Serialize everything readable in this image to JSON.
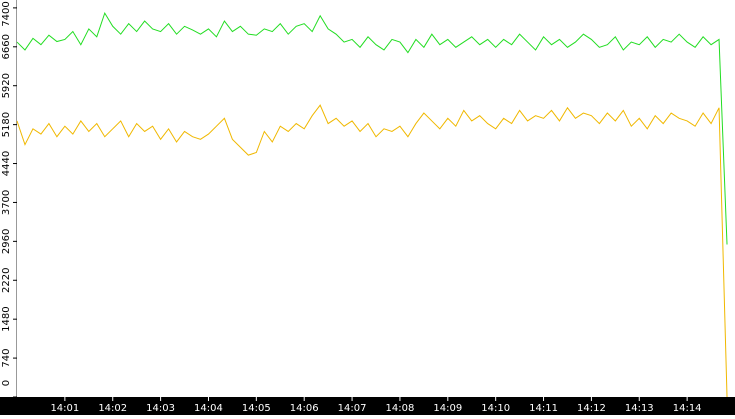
{
  "chart_data": {
    "type": "line",
    "x": [
      "14:00:00",
      "14:00:10",
      "14:00:20",
      "14:00:30",
      "14:00:40",
      "14:00:50",
      "14:01:00",
      "14:01:10",
      "14:01:20",
      "14:01:30",
      "14:01:40",
      "14:01:50",
      "14:02:00",
      "14:02:10",
      "14:02:20",
      "14:02:30",
      "14:02:40",
      "14:02:50",
      "14:03:00",
      "14:03:10",
      "14:03:20",
      "14:03:30",
      "14:03:40",
      "14:03:50",
      "14:04:00",
      "14:04:10",
      "14:04:20",
      "14:04:30",
      "14:04:40",
      "14:04:50",
      "14:05:00",
      "14:05:10",
      "14:05:20",
      "14:05:30",
      "14:05:40",
      "14:05:50",
      "14:06:00",
      "14:06:10",
      "14:06:20",
      "14:06:30",
      "14:06:40",
      "14:06:50",
      "14:07:00",
      "14:07:10",
      "14:07:20",
      "14:07:30",
      "14:07:40",
      "14:07:50",
      "14:08:00",
      "14:08:10",
      "14:08:20",
      "14:08:30",
      "14:08:40",
      "14:08:50",
      "14:09:00",
      "14:09:10",
      "14:09:20",
      "14:09:30",
      "14:09:40",
      "14:09:50",
      "14:10:00",
      "14:10:10",
      "14:10:20",
      "14:10:30",
      "14:10:40",
      "14:10:50",
      "14:11:00",
      "14:11:10",
      "14:11:20",
      "14:11:30",
      "14:11:40",
      "14:11:50",
      "14:12:00",
      "14:12:10",
      "14:12:20",
      "14:12:30",
      "14:12:40",
      "14:12:50",
      "14:13:00",
      "14:13:10",
      "14:13:20",
      "14:13:30",
      "14:13:40",
      "14:13:50",
      "14:14:00",
      "14:14:10",
      "14:14:20",
      "14:14:30",
      "14:14:40",
      "14:14:50"
    ],
    "series": [
      {
        "color": "#22dd22",
        "values": [
          6750,
          6600,
          6820,
          6700,
          6880,
          6760,
          6800,
          6950,
          6700,
          7000,
          6850,
          7300,
          7050,
          6900,
          7100,
          6950,
          7150,
          7000,
          6950,
          7100,
          6900,
          7050,
          6980,
          6900,
          7000,
          6850,
          7150,
          6950,
          7050,
          6900,
          6880,
          7000,
          6950,
          7100,
          6900,
          7050,
          7100,
          6950,
          7250,
          7000,
          6900,
          6750,
          6800,
          6650,
          6850,
          6700,
          6600,
          6800,
          6750,
          6550,
          6800,
          6650,
          6900,
          6700,
          6800,
          6650,
          6750,
          6850,
          6700,
          6800,
          6650,
          6800,
          6700,
          6900,
          6750,
          6600,
          6850,
          6700,
          6800,
          6650,
          6750,
          6900,
          6800,
          6650,
          6700,
          6850,
          6600,
          6750,
          6700,
          6850,
          6650,
          6800,
          6750,
          6900,
          6750,
          6650,
          6850,
          6700,
          6800,
          2900
        ]
      },
      {
        "color": "#f0b800",
        "values": [
          5250,
          4800,
          5100,
          5000,
          5200,
          4950,
          5150,
          5000,
          5250,
          5050,
          5200,
          4950,
          5100,
          5250,
          4950,
          5200,
          5050,
          5150,
          4900,
          5100,
          4850,
          5050,
          4950,
          4900,
          5000,
          5150,
          5300,
          4900,
          4750,
          4600,
          4650,
          5050,
          4850,
          5150,
          5050,
          5200,
          5100,
          5350,
          5550,
          5200,
          5300,
          5150,
          5250,
          5050,
          5200,
          4950,
          5100,
          5050,
          5150,
          4950,
          5200,
          5400,
          5250,
          5100,
          5300,
          5150,
          5450,
          5250,
          5350,
          5200,
          5100,
          5300,
          5200,
          5450,
          5250,
          5350,
          5300,
          5450,
          5250,
          5500,
          5300,
          5400,
          5350,
          5200,
          5400,
          5250,
          5450,
          5150,
          5300,
          5100,
          5350,
          5200,
          5400,
          5300,
          5250,
          5150,
          5400,
          5200,
          5500,
          0
        ]
      }
    ],
    "xlim": [
      "14:00:00",
      "14:15:00"
    ],
    "xticks": [
      "14:01",
      "14:02",
      "14:03",
      "14:04",
      "14:05",
      "14:06",
      "14:07",
      "14:08",
      "14:09",
      "14:10",
      "14:11",
      "14:12",
      "14:13",
      "14:14"
    ],
    "ylim": [
      0,
      7550
    ],
    "yticks": [
      0,
      740,
      1480,
      2220,
      2960,
      3700,
      4440,
      5180,
      5920,
      6660,
      7400
    ]
  }
}
